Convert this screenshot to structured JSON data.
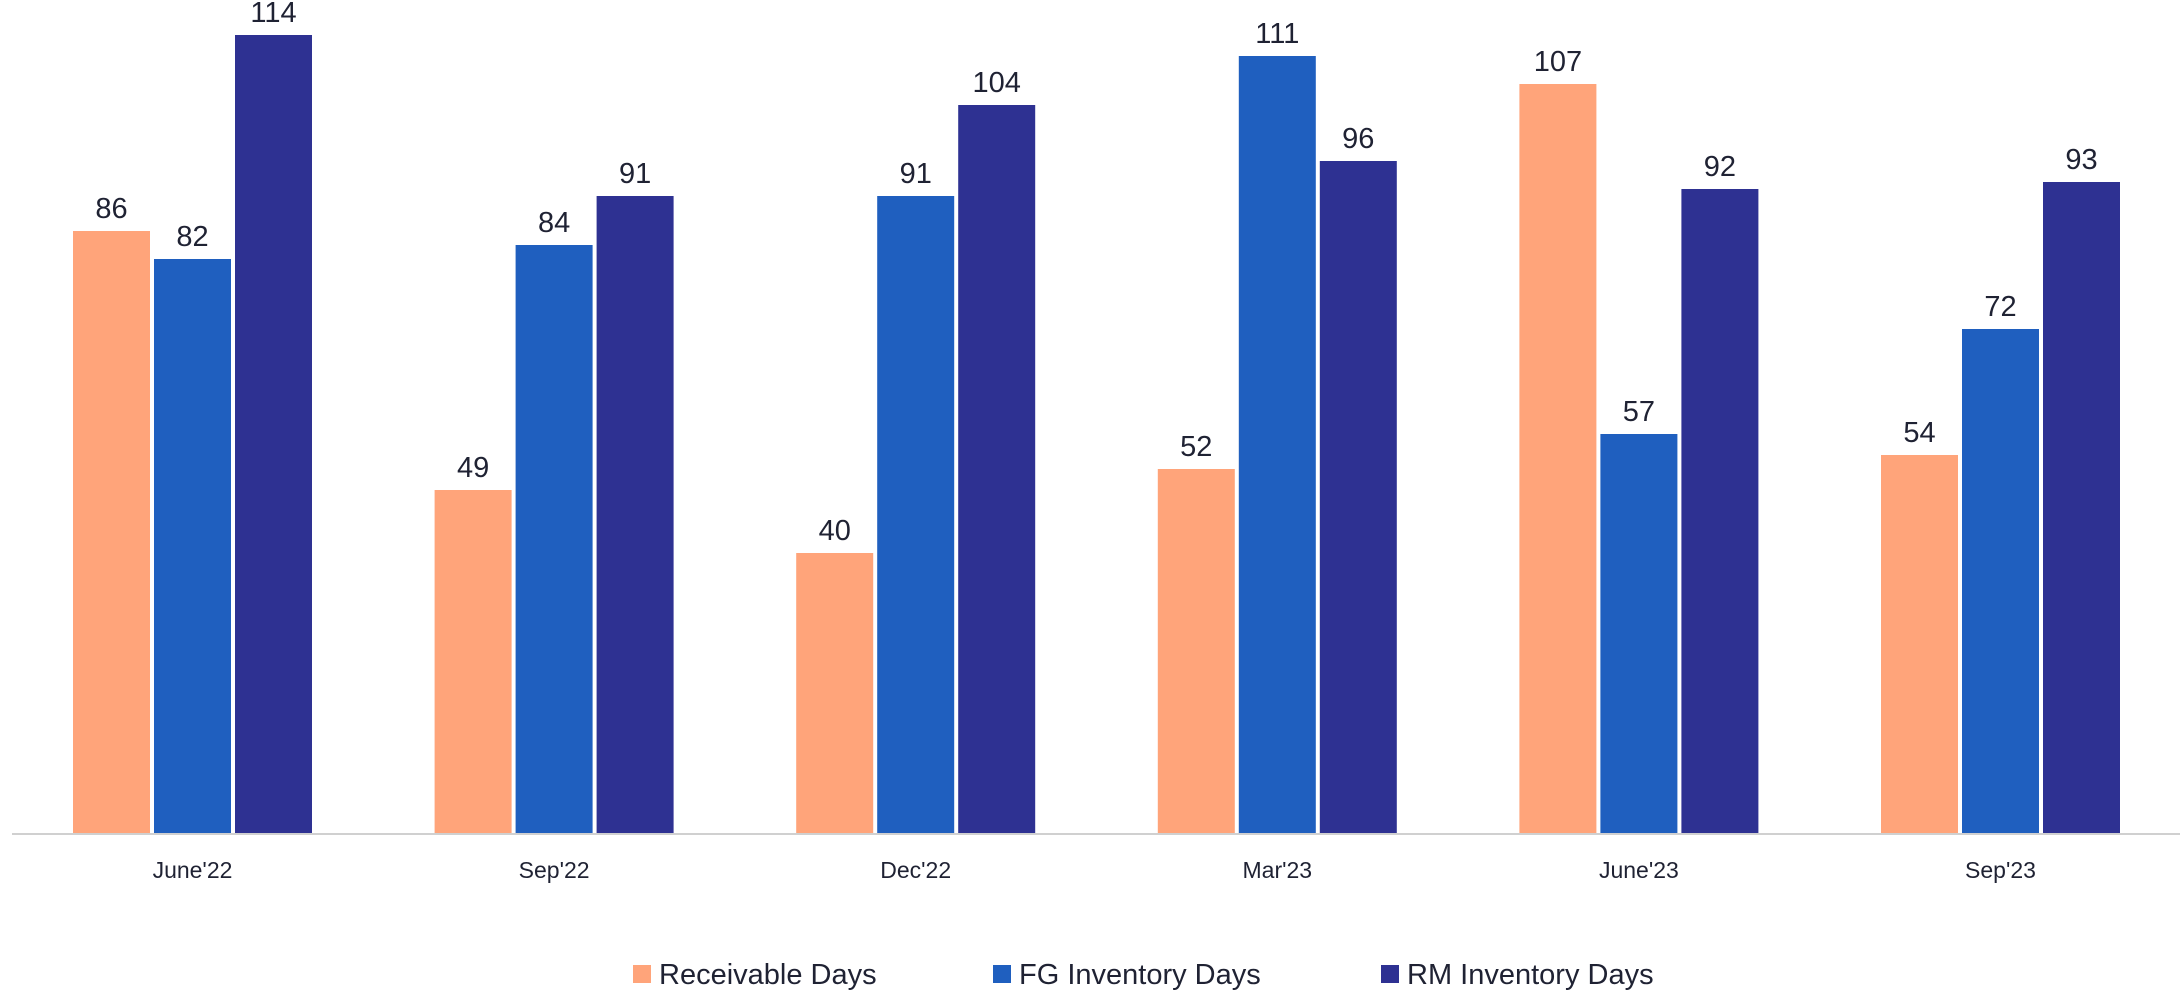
{
  "chart_data": {
    "type": "bar",
    "categories": [
      "June'22",
      "Sep'22",
      "Dec'22",
      "Mar'23",
      "June'23",
      "Sep'23"
    ],
    "series": [
      {
        "name": "Receivable Days",
        "color": "#FFA47A",
        "values": [
          86,
          49,
          40,
          52,
          107,
          54
        ]
      },
      {
        "name": "FG Inventory Days",
        "color": "#1F5FBF",
        "values": [
          82,
          84,
          91,
          111,
          57,
          72
        ]
      },
      {
        "name": "RM Inventory Days",
        "color": "#2E3192",
        "values": [
          114,
          91,
          104,
          96,
          92,
          93
        ]
      }
    ],
    "title": "",
    "xlabel": "",
    "ylabel": "",
    "ylim": [
      0,
      114
    ],
    "data_labels": true,
    "grid": false,
    "legend_position": "bottom"
  }
}
